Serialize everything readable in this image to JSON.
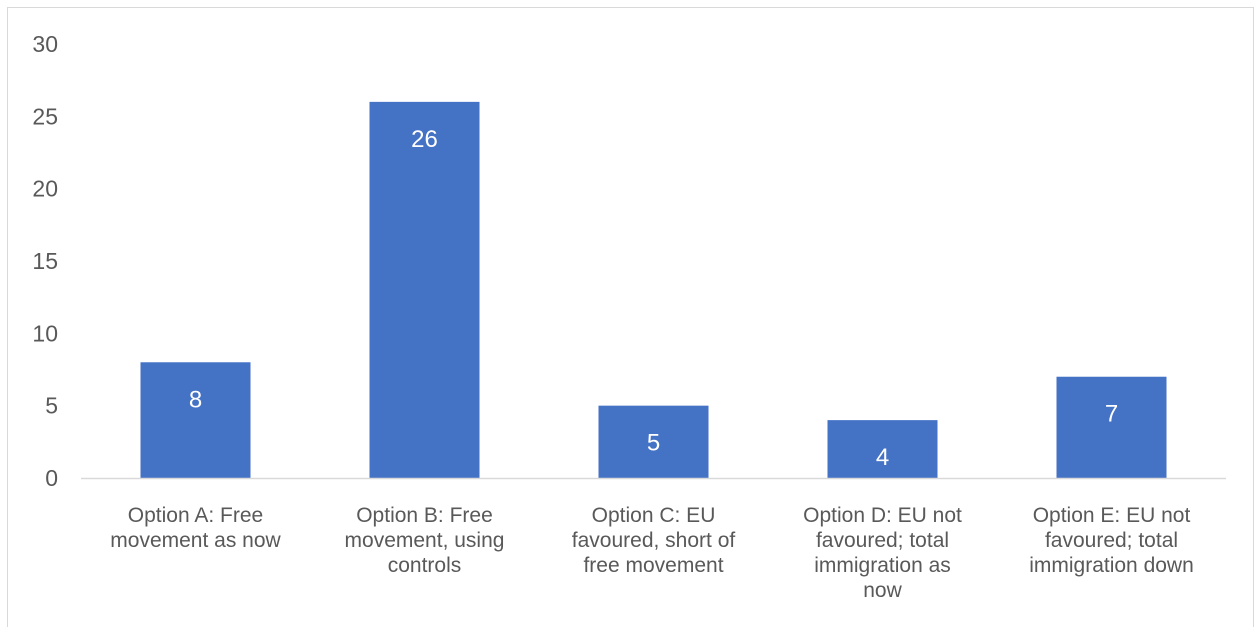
{
  "chart_data": {
    "type": "bar",
    "categories": [
      [
        "Option A: Free",
        "movement as now"
      ],
      [
        "Option B: Free",
        "movement, using",
        "controls"
      ],
      [
        "Option C: EU",
        "favoured, short of",
        "free movement"
      ],
      [
        "Option D: EU not",
        "favoured; total",
        "immigration as",
        "now"
      ],
      [
        "Option E: EU not",
        "favoured; total",
        "immigration down"
      ]
    ],
    "values": [
      8,
      26,
      5,
      4,
      7
    ],
    "ylim": [
      0,
      30
    ],
    "yticks": [
      0,
      5,
      10,
      15,
      20,
      25,
      30
    ],
    "grid": false,
    "legend": "none",
    "data_labels": true,
    "colors": {
      "bar": "#4472c4",
      "axis": "#d9d9d9",
      "text": "#595959",
      "data_label": "#ffffff"
    }
  }
}
